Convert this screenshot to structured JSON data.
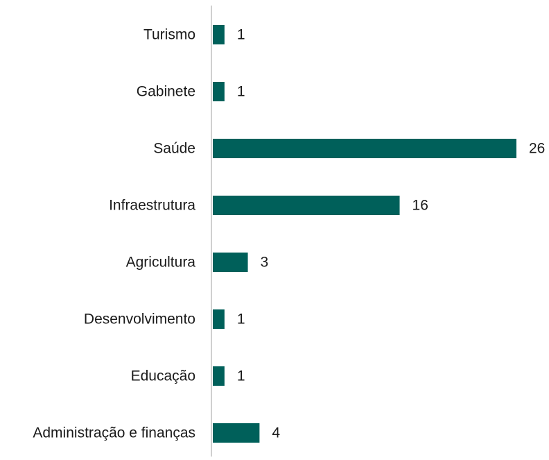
{
  "chart_data": {
    "type": "bar",
    "orientation": "horizontal",
    "categories": [
      "Turismo",
      "Gabinete",
      "Saúde",
      "Infraestrutura",
      "Agricultura",
      "Desenvolvimento",
      "Educação",
      "Administração e finanças"
    ],
    "values": [
      1,
      1,
      26,
      16,
      3,
      1,
      1,
      4
    ],
    "data_labels": [
      "1",
      "1",
      "26",
      "16",
      "3",
      "1",
      "1",
      "4"
    ],
    "bar_color": "#00605A",
    "axis_color": "#d0d0d0",
    "xlim": [
      0,
      26
    ],
    "grid": false,
    "legend": "none"
  }
}
